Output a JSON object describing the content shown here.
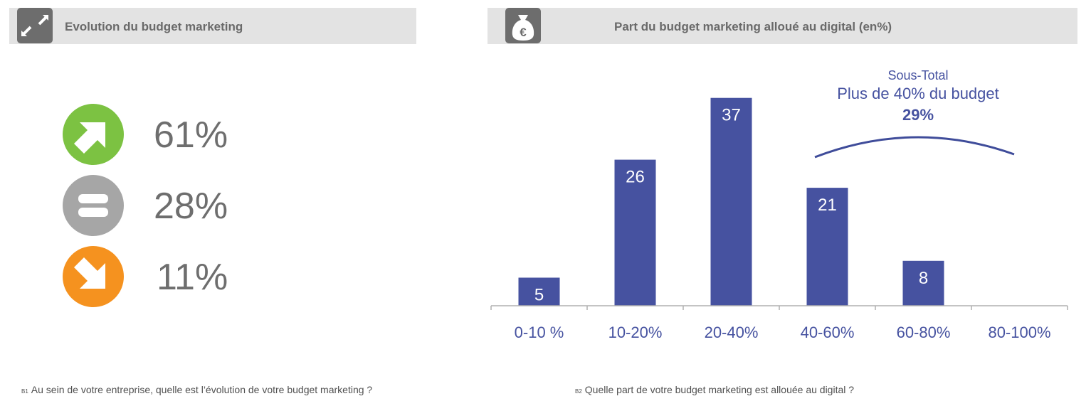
{
  "left_panel": {
    "title": "Evolution du budget marketing",
    "icon": "expand-arrows-icon",
    "items": [
      {
        "icon": "arrow-up-right-icon",
        "color": "#7cc242",
        "value": "61%"
      },
      {
        "icon": "equals-icon",
        "color": "#a6a6a6",
        "value": "28%"
      },
      {
        "icon": "arrow-down-right-icon",
        "color": "#f5921f",
        "value": "11%"
      }
    ],
    "footnote_code": "B1",
    "footnote": "Au sein de votre entreprise, quelle est l’évolution de votre budget marketing ?"
  },
  "right_panel": {
    "title": "Part du budget marketing alloué au digital (en%)",
    "icon": "euro-money-bag-icon",
    "annotation": {
      "line1": "Sous-Total",
      "line2": "Plus de 40% du budget",
      "value": "29%"
    },
    "footnote_code": "B2",
    "footnote": "Quelle part de votre budget marketing est allouée au digital ?"
  },
  "chart_data": [
    {
      "type": "bar",
      "categories": [
        "0-10  %",
        "10-20%",
        "20-40%",
        "40-60%",
        "60-80%",
        "80-100%"
      ],
      "values": [
        5,
        26,
        37,
        21,
        8,
        null
      ],
      "title": "Part du budget marketing alloué au digital (en%)",
      "xlabel": "",
      "ylabel": "",
      "ylim": [
        0,
        40
      ],
      "bar_color": "#4652a0",
      "grid": false
    }
  ]
}
